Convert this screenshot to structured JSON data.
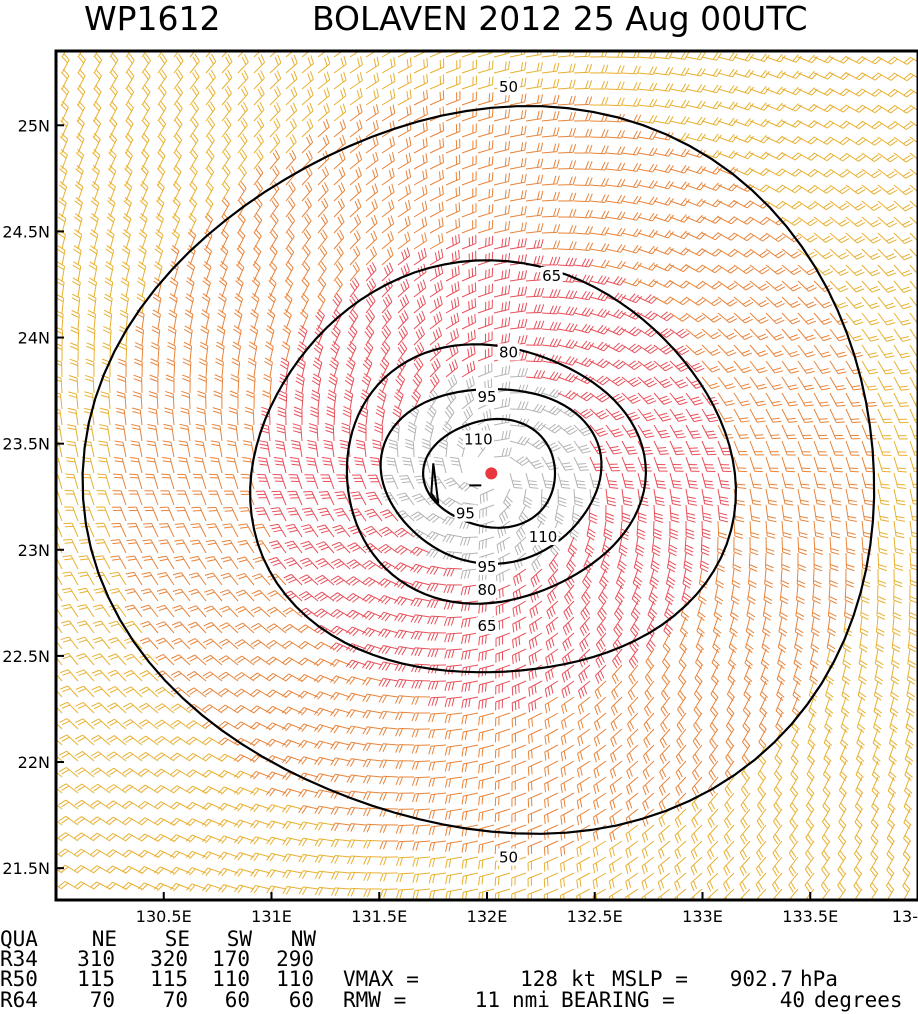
{
  "chart_data": {
    "type": "wind-barb-contour-map",
    "title": {
      "storm_id": "WP1612",
      "name_date": "BOLAVEN 2012 25 Aug 00UTC"
    },
    "x_axis": {
      "range_deg": [
        130.0,
        134.0
      ],
      "ticks": [
        {
          "value": 130.5,
          "label": "130.5E"
        },
        {
          "value": 131.0,
          "label": "131E"
        },
        {
          "value": 131.5,
          "label": "131.5E"
        },
        {
          "value": 132.0,
          "label": "132E"
        },
        {
          "value": 132.5,
          "label": "132.5E"
        },
        {
          "value": 133.0,
          "label": "133E"
        },
        {
          "value": 133.5,
          "label": "133.5E"
        },
        {
          "value": 134.0,
          "label": "13-"
        }
      ]
    },
    "y_axis": {
      "range_deg": [
        21.35,
        25.35
      ],
      "ticks": [
        {
          "value": 21.5,
          "label": "21.5N"
        },
        {
          "value": 22.0,
          "label": "22N"
        },
        {
          "value": 22.5,
          "label": "22.5N"
        },
        {
          "value": 23.0,
          "label": "23N"
        },
        {
          "value": 23.5,
          "label": "23.5N"
        },
        {
          "value": 24.0,
          "label": "24N"
        },
        {
          "value": 24.5,
          "label": "24.5N"
        },
        {
          "value": 25.0,
          "label": "25N"
        }
      ]
    },
    "storm_center": {
      "lon": 132.02,
      "lat": 23.36,
      "color": "#e8383d"
    },
    "wind_colors": {
      "low": "#e8b030",
      "mid": "#e8843a",
      "high": "#e8505a",
      "core": "#b4b4b4"
    },
    "contours": [
      {
        "level": 50,
        "label": "50",
        "rx_deg": 1.8,
        "ry_deg": 1.74,
        "labels_at": [
          {
            "lon": 132.1,
            "lat": 25.18
          },
          {
            "lon": 132.1,
            "lat": 21.55
          }
        ]
      },
      {
        "level": 65,
        "label": "65",
        "rx_deg": 1.1,
        "ry_deg": 0.99,
        "labels_at": [
          {
            "lon": 132.3,
            "lat": 24.29
          },
          {
            "lon": 132.0,
            "lat": 22.64
          }
        ]
      },
      {
        "level": 80,
        "label": "80",
        "rx_deg": 0.68,
        "ry_deg": 0.62,
        "labels_at": [
          {
            "lon": 132.1,
            "lat": 23.93
          },
          {
            "lon": 132.0,
            "lat": 22.81
          }
        ]
      },
      {
        "level": 95,
        "label": "95",
        "rx_deg": 0.5,
        "ry_deg": 0.42,
        "labels_at": [
          {
            "lon": 132.0,
            "lat": 23.72
          },
          {
            "lon": 132.0,
            "lat": 22.92
          }
        ]
      },
      {
        "level": 110,
        "label": "110",
        "rx_deg": 0.3,
        "ry_deg": 0.26,
        "labels_at": [
          {
            "lon": 131.96,
            "lat": 23.52
          },
          {
            "lon": 132.26,
            "lat": 23.06
          }
        ]
      }
    ],
    "inner_labels": [
      {
        "label": "95",
        "lon": 131.9,
        "lat": 23.17
      }
    ],
    "wind_radii": {
      "header": [
        "QUA",
        "NE",
        "SE",
        "SW",
        "NW"
      ],
      "rows": [
        {
          "name": "R34",
          "values": [
            310,
            320,
            170,
            290
          ]
        },
        {
          "name": "R50",
          "values": [
            115,
            115,
            110,
            110
          ]
        },
        {
          "name": "R64",
          "values": [
            70,
            70,
            60,
            60
          ]
        }
      ]
    },
    "stats": {
      "vmax_label": "VMAX =",
      "vmax": 128,
      "vmax_unit": "kt",
      "mslp_label": "MSLP =",
      "mslp": 902.7,
      "mslp_unit": "hPa",
      "rmw_label": "RMW =",
      "rmw": 11,
      "rmw_unit": "nmi",
      "bearing_label": "BEARING =",
      "bearing": 40,
      "bearing_unit": "degrees"
    }
  }
}
